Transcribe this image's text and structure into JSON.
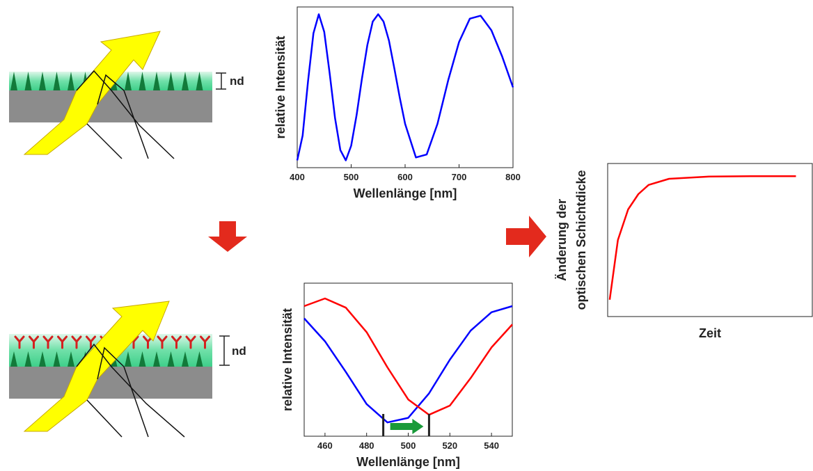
{
  "chart_data": [
    {
      "type": "line",
      "xlabel": "Wellenlänge [nm]",
      "ylabel": "relative Intensität",
      "xlim": [
        400,
        800
      ],
      "ylim": [
        -0.05,
        1.05
      ],
      "xticks": [
        400,
        500,
        600,
        700,
        800
      ],
      "x": [
        400,
        410,
        420,
        430,
        440,
        450,
        460,
        470,
        480,
        490,
        500,
        510,
        520,
        530,
        540,
        550,
        560,
        570,
        580,
        590,
        600,
        620,
        640,
        660,
        680,
        700,
        720,
        740,
        760,
        780,
        800
      ],
      "series": [
        {
          "color": "#0000ff",
          "values": [
            0.0,
            0.17,
            0.54,
            0.87,
            1.0,
            0.88,
            0.6,
            0.29,
            0.07,
            0.0,
            0.1,
            0.31,
            0.56,
            0.79,
            0.95,
            1.0,
            0.95,
            0.82,
            0.63,
            0.43,
            0.25,
            0.02,
            0.04,
            0.25,
            0.55,
            0.81,
            0.97,
            0.99,
            0.89,
            0.71,
            0.5
          ]
        }
      ]
    },
    {
      "type": "line",
      "xlabel": "Wellenlänge [nm]",
      "ylabel": "relative Intensität",
      "xlim": [
        450,
        550
      ],
      "ylim": [
        0,
        1
      ],
      "xticks": [
        460,
        480,
        500,
        520,
        540
      ],
      "x": [
        450,
        460,
        470,
        480,
        490,
        500,
        510,
        520,
        530,
        540,
        550
      ],
      "series": [
        {
          "color": "#0000ff",
          "values": [
            0.77,
            0.62,
            0.42,
            0.21,
            0.09,
            0.12,
            0.28,
            0.5,
            0.69,
            0.81,
            0.85
          ]
        },
        {
          "color": "#ff0000",
          "values": [
            0.85,
            0.9,
            0.84,
            0.68,
            0.45,
            0.24,
            0.14,
            0.2,
            0.38,
            0.58,
            0.73
          ]
        }
      ],
      "markers": [
        488,
        510
      ]
    },
    {
      "type": "line",
      "xlabel": "Zeit",
      "ylabel": [
        "Änderung der",
        "optischen Schichtdicke"
      ],
      "xlim": [
        0,
        1
      ],
      "ylim": [
        0,
        1
      ],
      "x": [
        0.01,
        0.05,
        0.1,
        0.15,
        0.2,
        0.3,
        0.5,
        0.7,
        0.92
      ],
      "series": [
        {
          "color": "#ff0000",
          "values": [
            0.11,
            0.5,
            0.7,
            0.8,
            0.86,
            0.9,
            0.915,
            0.917,
            0.917
          ]
        }
      ]
    }
  ],
  "diagram": {
    "labels": [
      "nd",
      "nd"
    ]
  }
}
